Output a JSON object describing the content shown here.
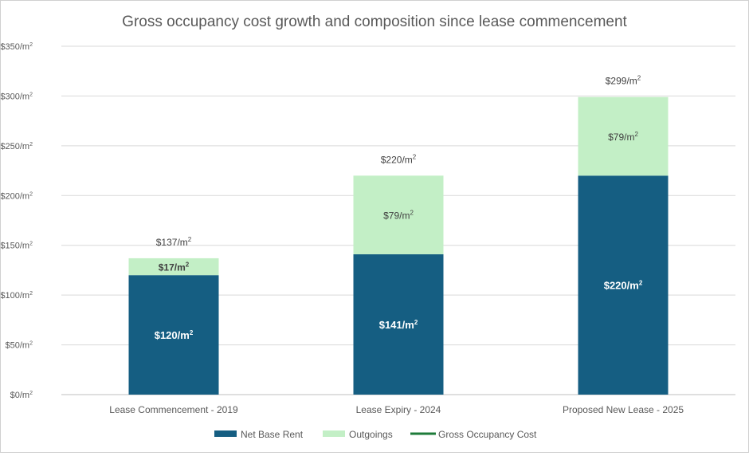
{
  "chart_data": {
    "type": "bar",
    "stacked": true,
    "title": "Gross occupancy cost growth and composition since lease commencement",
    "categories": [
      "Lease Commencement - 2019",
      "Lease Expiry - 2024",
      "Proposed New Lease - 2025"
    ],
    "series": [
      {
        "name": "Net Base Rent",
        "values": [
          120,
          141,
          220
        ],
        "color": "#155e82",
        "labels": [
          "$120/m²",
          "$141/m²",
          "$220/m²"
        ]
      },
      {
        "name": "Outgoings",
        "values": [
          17,
          79,
          79
        ],
        "color": "#c3efc6",
        "labels": [
          "$17/m²",
          "$79/m²",
          "$79/m²"
        ]
      },
      {
        "name": "Gross Occupancy Cost",
        "values": [
          137,
          220,
          299
        ],
        "color": "#1e7b3a",
        "kind": "total-line",
        "labels": [
          "$137/m²",
          "$220/m²",
          "$299/m²"
        ]
      }
    ],
    "ylim": [
      0,
      350
    ],
    "yticks": [
      0,
      50,
      100,
      150,
      200,
      250,
      300,
      350
    ],
    "yticklabels": [
      "$0/m²",
      "$50/m²",
      "$100/m²",
      "$150/m²",
      "$200/m²",
      "$250/m²",
      "$300/m²",
      "$350/m²"
    ],
    "grid": true,
    "legend_position": "bottom"
  }
}
